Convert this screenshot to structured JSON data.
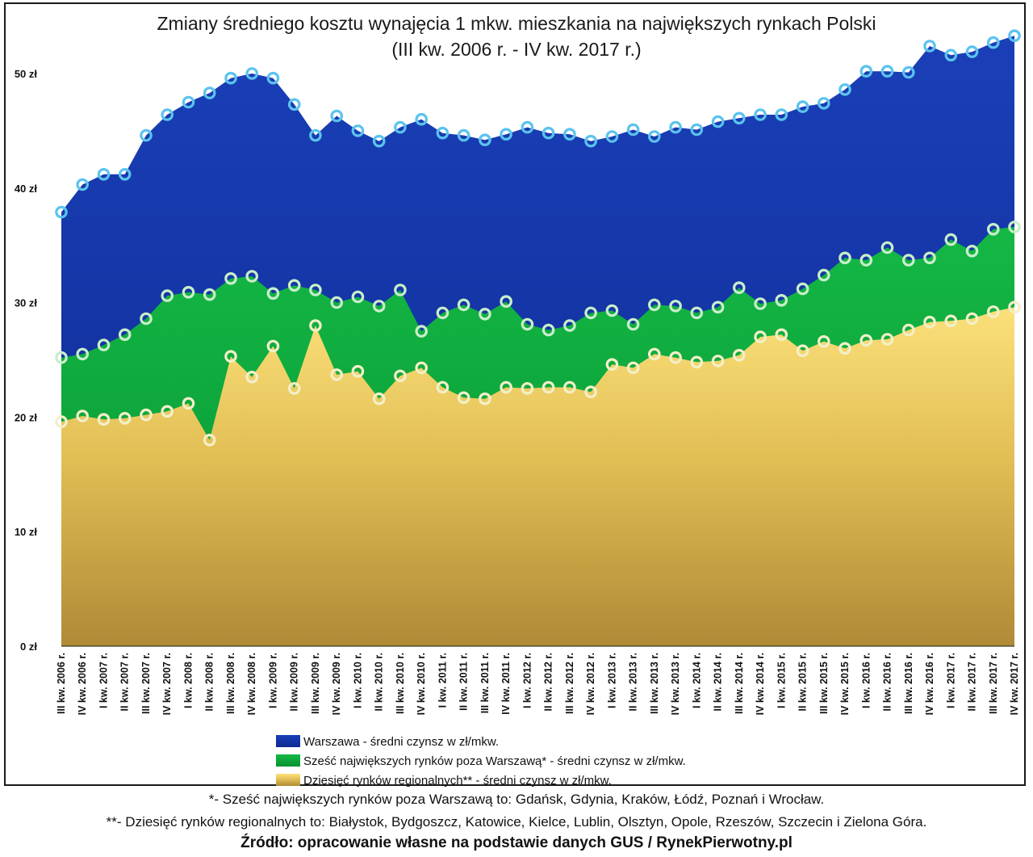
{
  "chart_data": {
    "type": "area",
    "title": "Zmiany średniego kosztu wynajęcia 1 mkw. mieszkania na największych rynkach Polski",
    "subtitle": "(III kw. 2006 r. - IV kw. 2017 r.)",
    "xlabel": "",
    "ylabel": "",
    "ylim": [
      0,
      54
    ],
    "yticks": [
      {
        "value": 0,
        "label": "0 zł"
      },
      {
        "value": 10,
        "label": "10 zł"
      },
      {
        "value": 20,
        "label": "20 zł"
      },
      {
        "value": 30,
        "label": "30 zł"
      },
      {
        "value": 40,
        "label": "40 zł"
      },
      {
        "value": 50,
        "label": "50 zł"
      }
    ],
    "grid": false,
    "legend_position": "bottom-left",
    "categories": [
      "III kw. 2006 r.",
      "IV kw. 2006 r.",
      "I kw. 2007 r.",
      "II kw. 2007 r.",
      "III kw. 2007 r.",
      "IV kw. 2007 r.",
      "I kw. 2008 r.",
      "II kw. 2008 r.",
      "III kw. 2008 r.",
      "IV kw. 2008 r.",
      "I kw. 2009 r.",
      "II kw. 2009 r.",
      "III kw. 2009 r.",
      "IV kw. 2009 r.",
      "I kw. 2010 r.",
      "II kw. 2010 r.",
      "III kw. 2010 r.",
      "IV kw. 2010 r.",
      "I kw. 2011 r.",
      "II kw. 2011 r.",
      "III kw. 2011 r.",
      "IV kw. 2011 r.",
      "I kw. 2012 r.",
      "II kw. 2012 r.",
      "III kw. 2012 r.",
      "IV kw. 2012 r.",
      "I kw. 2013 r.",
      "II kw. 2013 r.",
      "III kw. 2013 r.",
      "IV kw. 2013 r.",
      "I kw. 2014 r.",
      "II kw. 2014 r.",
      "III kw. 2014 r.",
      "IV kw. 2014 r.",
      "I kw. 2015 r.",
      "II kw. 2015 r.",
      "III kw. 2015 r.",
      "IV kw. 2015 r.",
      "I kw. 2016 r.",
      "II kw. 2016 r.",
      "III kw. 2016 r.",
      "IV kw. 2016 r.",
      "I kw. 2017 r.",
      "II kw. 2017 r.",
      "III kw. 2017 r.",
      "IV kw. 2017 r."
    ],
    "series": [
      {
        "name": "Warszawa - średni czynsz w zł/mkw.",
        "color": "#1a3fb8",
        "marker_color": "#6ec6ee",
        "values": [
          37.9,
          40.3,
          41.2,
          41.2,
          44.6,
          46.4,
          47.5,
          48.3,
          49.6,
          50.0,
          49.6,
          47.3,
          44.6,
          46.3,
          45.0,
          44.1,
          45.3,
          46.0,
          44.8,
          44.6,
          44.2,
          44.7,
          45.3,
          44.8,
          44.7,
          44.1,
          44.5,
          45.1,
          44.5,
          45.3,
          45.1,
          45.8,
          46.1,
          46.4,
          46.4,
          47.1,
          47.4,
          48.6,
          50.2,
          50.2,
          50.1,
          52.4,
          51.6,
          51.9,
          52.7,
          53.3
        ]
      },
      {
        "name": "Sześć największych rynków poza Warszawą* - średni czynsz w zł/mkw.",
        "color": "#10a83a",
        "marker_color": "#c6ecc9",
        "values": [
          25.2,
          25.5,
          26.3,
          27.2,
          28.6,
          30.6,
          30.9,
          30.7,
          32.1,
          32.3,
          30.8,
          31.5,
          31.1,
          30.0,
          30.5,
          29.7,
          31.1,
          27.5,
          29.1,
          29.8,
          29.0,
          30.1,
          28.1,
          27.6,
          28.0,
          29.1,
          29.3,
          28.1,
          29.8,
          29.7,
          29.1,
          29.6,
          31.3,
          29.9,
          30.2,
          31.2,
          32.4,
          33.9,
          33.7,
          34.8,
          33.7,
          33.9,
          35.5,
          34.5,
          36.4,
          36.6
        ]
      },
      {
        "name": "Dziesięć rynków regionalnych** - średni czynsz w zł/mkw.",
        "color": "#e8c24a",
        "marker_color": "#f2efc8",
        "values": [
          19.6,
          20.1,
          19.8,
          19.9,
          20.2,
          20.5,
          21.2,
          18.0,
          25.3,
          23.5,
          26.2,
          22.5,
          28.0,
          23.7,
          24.0,
          21.6,
          23.6,
          24.3,
          22.6,
          21.7,
          21.6,
          22.6,
          22.5,
          22.6,
          22.6,
          22.2,
          24.6,
          24.3,
          25.5,
          25.2,
          24.8,
          24.9,
          25.4,
          27.0,
          27.2,
          25.8,
          26.6,
          26.0,
          26.7,
          26.8,
          27.6,
          28.3,
          28.4,
          28.6,
          29.2,
          29.6
        ]
      }
    ]
  },
  "footnotes": {
    "six_markets": "*- Sześć największych rynków poza Warszawą to: Gdańsk, Gdynia, Kraków, Łódź, Poznań i Wrocław.",
    "ten_markets": "**- Dziesięć rynków regionalnych to: Białystok, Bydgoszcz, Katowice, Kielce, Lublin, Olsztyn, Opole, Rzeszów, Szczecin i Zielona Góra.",
    "source": "Źródło: opracowanie własne na podstawie danych GUS / RynekPierwotny.pl"
  }
}
